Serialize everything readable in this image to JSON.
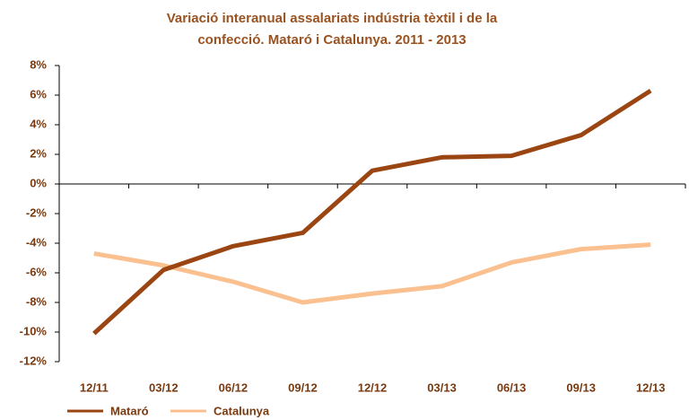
{
  "chart_data": {
    "type": "line",
    "title": [
      "Variació interanual assalariats indústria tèxtil i de la",
      "confecció. Mataró i Catalunya.  2011 - 2013"
    ],
    "categories": [
      "12/11",
      "03/12",
      "06/12",
      "09/12",
      "12/12",
      "03/13",
      "06/13",
      "09/13",
      "12/13"
    ],
    "series": [
      {
        "name": "Mataró",
        "color": "#9a4512",
        "values": [
          -10.1,
          -5.8,
          -4.2,
          -3.3,
          0.9,
          1.8,
          1.9,
          3.3,
          6.3
        ]
      },
      {
        "name": "Catalunya",
        "color": "#fbc08f",
        "values": [
          -4.7,
          -5.5,
          -6.6,
          -8.0,
          -7.4,
          -6.9,
          -5.3,
          -4.4,
          -4.1
        ]
      }
    ],
    "ylim": [
      -12,
      8
    ],
    "yticks": [
      {
        "value": -12,
        "label": "-12%"
      },
      {
        "value": -10,
        "label": "-10%"
      },
      {
        "value": -8,
        "label": "-8%"
      },
      {
        "value": -6,
        "label": "-6%"
      },
      {
        "value": -4,
        "label": "-4%"
      },
      {
        "value": -2,
        "label": "-2%"
      },
      {
        "value": 0,
        "label": "0%"
      },
      {
        "value": 2,
        "label": "2%"
      },
      {
        "value": 4,
        "label": "4%"
      },
      {
        "value": 6,
        "label": "6%"
      },
      {
        "value": 8,
        "label": "8%"
      }
    ],
    "legend": "bottom"
  }
}
